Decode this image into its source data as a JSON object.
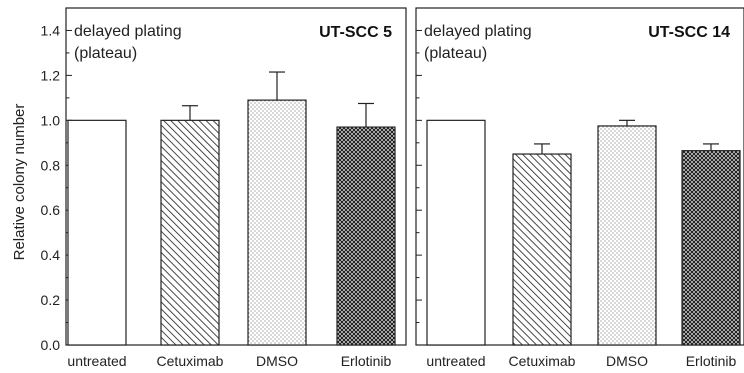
{
  "ylabel": "Relative colony number",
  "chart_data": [
    {
      "type": "bar",
      "panel_label": "UT-SCC 5",
      "annotation": [
        "delayed plating",
        "(plateau)"
      ],
      "categories": [
        "untreated",
        "Cetuximab",
        "DMSO",
        "Erlotinib"
      ],
      "values": [
        1.0,
        1.0,
        1.09,
        0.97
      ],
      "error_plus": [
        0,
        0.065,
        0.125,
        0.105
      ],
      "patterns": [
        "none",
        "diagonal-hatch",
        "dots",
        "crosshatch"
      ],
      "ylabel": "Relative colony number",
      "ylim": [
        0,
        1.5
      ],
      "yticks": [
        "0.0",
        "0.2",
        "0.4",
        "0.6",
        "0.8",
        "1.0",
        "1.2",
        "1.4"
      ],
      "grid": false,
      "legend": "none"
    },
    {
      "type": "bar",
      "panel_label": "UT-SCC 14",
      "annotation": [
        "delayed plating",
        "(plateau)"
      ],
      "categories": [
        "untreated",
        "Cetuximab",
        "DMSO",
        "Erlotinib"
      ],
      "values": [
        1.0,
        0.85,
        0.975,
        0.865
      ],
      "error_plus": [
        0,
        0.045,
        0.025,
        0.03
      ],
      "patterns": [
        "none",
        "diagonal-hatch",
        "dots",
        "crosshatch"
      ],
      "ylim": [
        0,
        1.5
      ],
      "yticks": [],
      "grid": false,
      "legend": "none"
    }
  ]
}
